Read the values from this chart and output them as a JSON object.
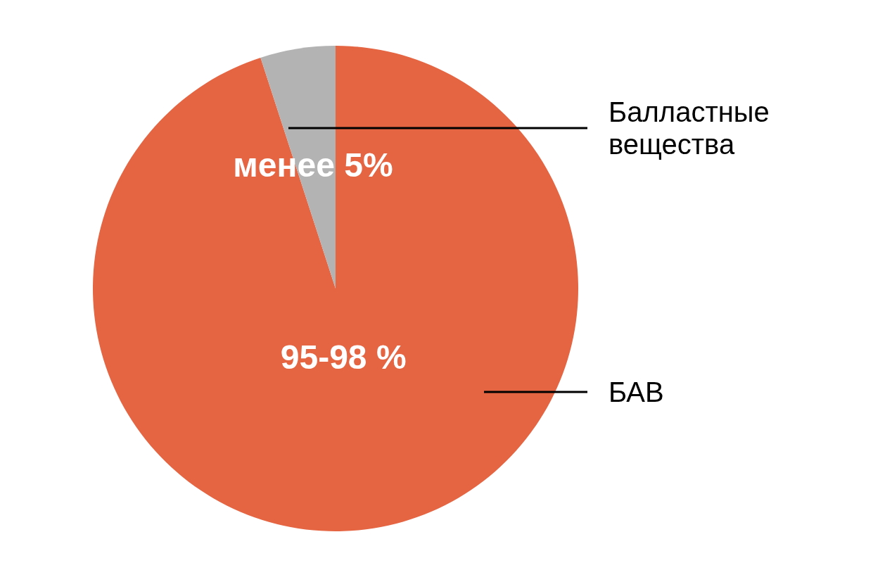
{
  "chart_data": {
    "type": "pie",
    "categories": [
      "БАВ",
      "Балластные вещества"
    ],
    "values": [
      95,
      5
    ],
    "colors": [
      "#e56442",
      "#b3b3b3"
    ],
    "value_labels": [
      "95-98 %",
      "менее 5%"
    ]
  }
}
